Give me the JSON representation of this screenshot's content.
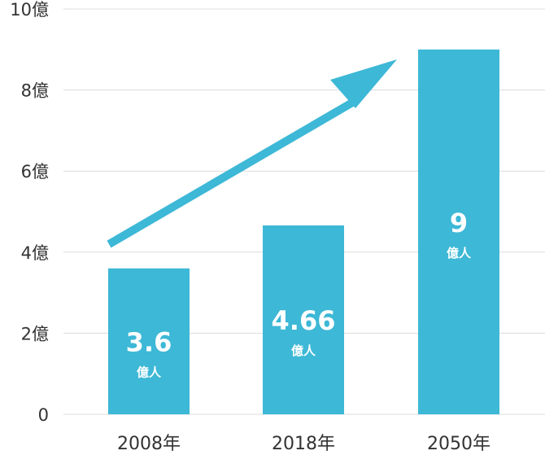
{
  "chart_data": {
    "type": "bar",
    "categories": [
      "2008年",
      "2018年",
      "2050年"
    ],
    "values": [
      3.6,
      4.66,
      9
    ],
    "data_labels": [
      {
        "value": "3.6",
        "unit": "億人"
      },
      {
        "value": "4.66",
        "unit": "億人"
      },
      {
        "value": "9",
        "unit": "億人"
      }
    ],
    "yticks": [
      {
        "value": 0,
        "label": "0"
      },
      {
        "value": 2,
        "label": "2億"
      },
      {
        "value": 4,
        "label": "4億"
      },
      {
        "value": 6,
        "label": "6億"
      },
      {
        "value": 8,
        "label": "8億"
      },
      {
        "value": 10,
        "label": "10億"
      }
    ],
    "ylim": [
      0,
      10
    ],
    "grid": true,
    "trend_arrow": true,
    "colors": {
      "bar": "#3db8d6",
      "arrow": "#3db8d6",
      "grid": "#dcdcdc",
      "text": "#333333"
    }
  }
}
